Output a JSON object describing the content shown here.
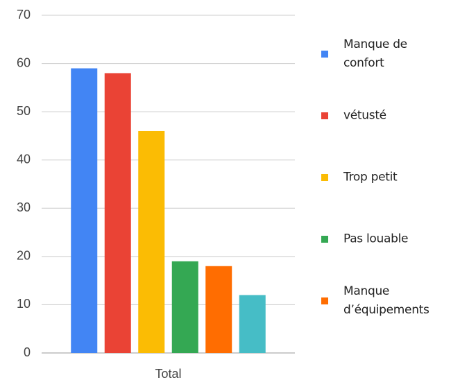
{
  "chart_data": {
    "type": "bar",
    "categories": [
      "Total"
    ],
    "series": [
      {
        "name": "Manque de confort",
        "color": "#4285f4",
        "values": [
          59
        ]
      },
      {
        "name": "vétusté",
        "color": "#ea4335",
        "values": [
          58
        ]
      },
      {
        "name": "Trop petit",
        "color": "#fbbc04",
        "values": [
          46
        ]
      },
      {
        "name": "Pas louable",
        "color": "#34a853",
        "values": [
          19
        ]
      },
      {
        "name": "Manque d’équipements",
        "color": "#ff6d01",
        "values": [
          18
        ]
      },
      {
        "color": "#46bdc6",
        "values": [
          12
        ]
      }
    ],
    "ylim": [
      0,
      70
    ],
    "yticks": [
      0,
      10,
      20,
      30,
      40,
      50,
      60,
      70
    ],
    "grid": true,
    "legend": "right"
  }
}
